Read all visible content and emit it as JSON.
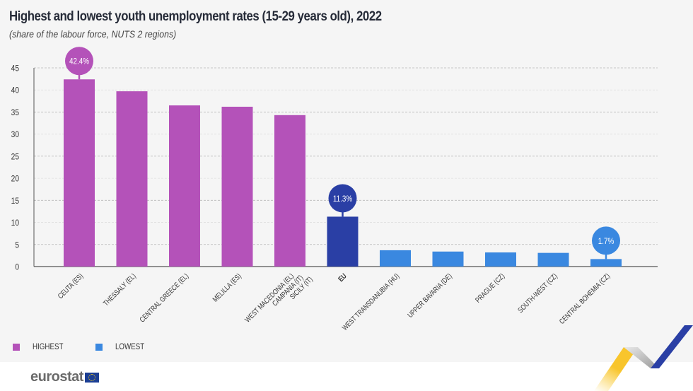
{
  "header": {
    "title": "Highest and lowest youth unemployment rates (15-29 years old), 2022",
    "subtitle": "(share of the labour force, NUTS 2 regions)"
  },
  "colors": {
    "highest": "#b452b9",
    "eu": "#2a3fa5",
    "lowest": "#3a88e0",
    "axis": "#555555",
    "grid": "#b8b8b8",
    "background": "#f5f5f5"
  },
  "legend": {
    "items": [
      {
        "label": "HIGHEST",
        "color": "#b452b9"
      },
      {
        "label": "LOWEST",
        "color": "#3a88e0"
      }
    ]
  },
  "footer": {
    "logo_text": "eurostat"
  },
  "chart_data": {
    "type": "bar",
    "title": "Highest and lowest youth unemployment rates (15-29 years old), 2022",
    "subtitle": "(share of the labour force, NUTS 2 regions)",
    "xlabel": "",
    "ylabel": "",
    "ylim": [
      0,
      45
    ],
    "yticks": [
      0,
      5,
      10,
      15,
      20,
      25,
      30,
      35,
      40,
      45
    ],
    "grid": true,
    "legend_position": "bottom-left",
    "categories": [
      "CEUTA (ES)",
      "THESSALY (EL)",
      "CENTRAL GREECE (EL)",
      "MELILLA (ES)",
      "WEST MACEDONIA (EL)\nCAMPANIA (IT)\nSICILY (IT)",
      "EU",
      "WEST TRANSDANUBIA (HU)",
      "UPPER BAVARIA (DE)",
      "PRAGUE (CZ)",
      "SOUTH-WEST (CZ)",
      "CENTRAL BOHEMIA (CZ)"
    ],
    "values": [
      42.4,
      39.7,
      36.5,
      36.2,
      34.3,
      11.3,
      3.7,
      3.4,
      3.2,
      3.1,
      1.7
    ],
    "groups": [
      "highest",
      "highest",
      "highest",
      "highest",
      "highest",
      "eu",
      "lowest",
      "lowest",
      "lowest",
      "lowest",
      "lowest"
    ],
    "annotations": [
      {
        "category_index": 0,
        "text": "42.4%"
      },
      {
        "category_index": 5,
        "text": "11.3%"
      },
      {
        "category_index": 10,
        "text": "1.7%"
      }
    ]
  }
}
